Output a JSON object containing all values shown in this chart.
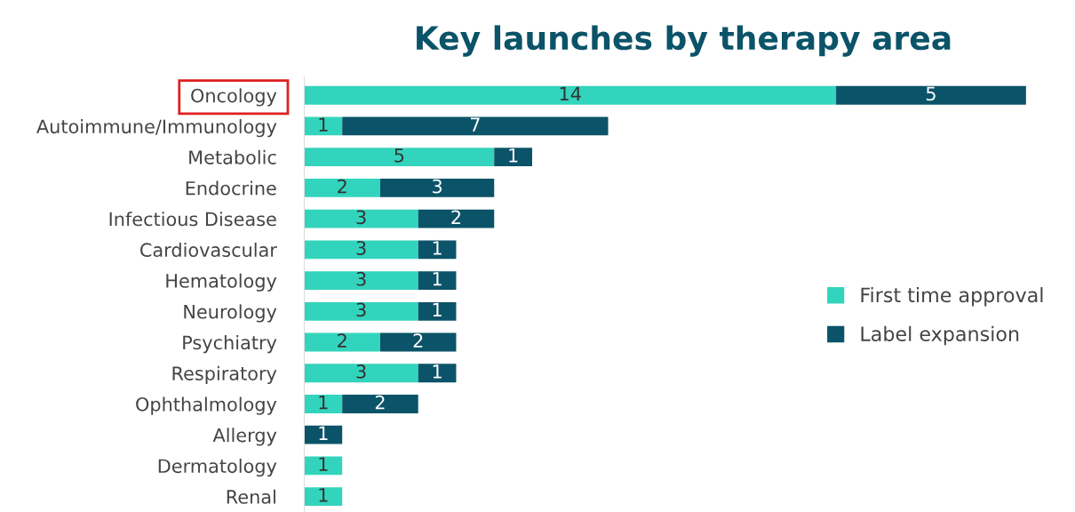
{
  "chart_data": {
    "type": "bar",
    "orientation": "horizontal",
    "stacked": true,
    "title": "Key launches by therapy area",
    "categories": [
      "Oncology",
      "Autoimmune/Immunology",
      "Metabolic",
      "Endocrine",
      "Infectious Disease",
      "Cardiovascular",
      "Hematology",
      "Neurology",
      "Psychiatry",
      "Respiratory",
      "Ophthalmology",
      "Allergy",
      "Dermatology",
      "Renal"
    ],
    "series": [
      {
        "name": "First time approval",
        "color": "#33d4bd",
        "values": [
          14,
          1,
          5,
          2,
          3,
          3,
          3,
          3,
          2,
          3,
          1,
          0,
          1,
          1
        ],
        "value_labels": [
          "14",
          "1",
          "5",
          "2",
          "3",
          "3",
          "3",
          "3",
          "2",
          "3",
          "1",
          null,
          "1",
          "1"
        ]
      },
      {
        "name": "Label expansion",
        "color": "#0b5368",
        "values": [
          5,
          7,
          1,
          3,
          2,
          1,
          1,
          1,
          2,
          1,
          2,
          1,
          0,
          0
        ],
        "value_labels": [
          "5",
          "7",
          "1",
          "3",
          "2",
          "1",
          "1",
          "1",
          "2",
          "1",
          "2",
          "1",
          null,
          null
        ]
      }
    ],
    "legend": "right",
    "grid": false
  }
}
